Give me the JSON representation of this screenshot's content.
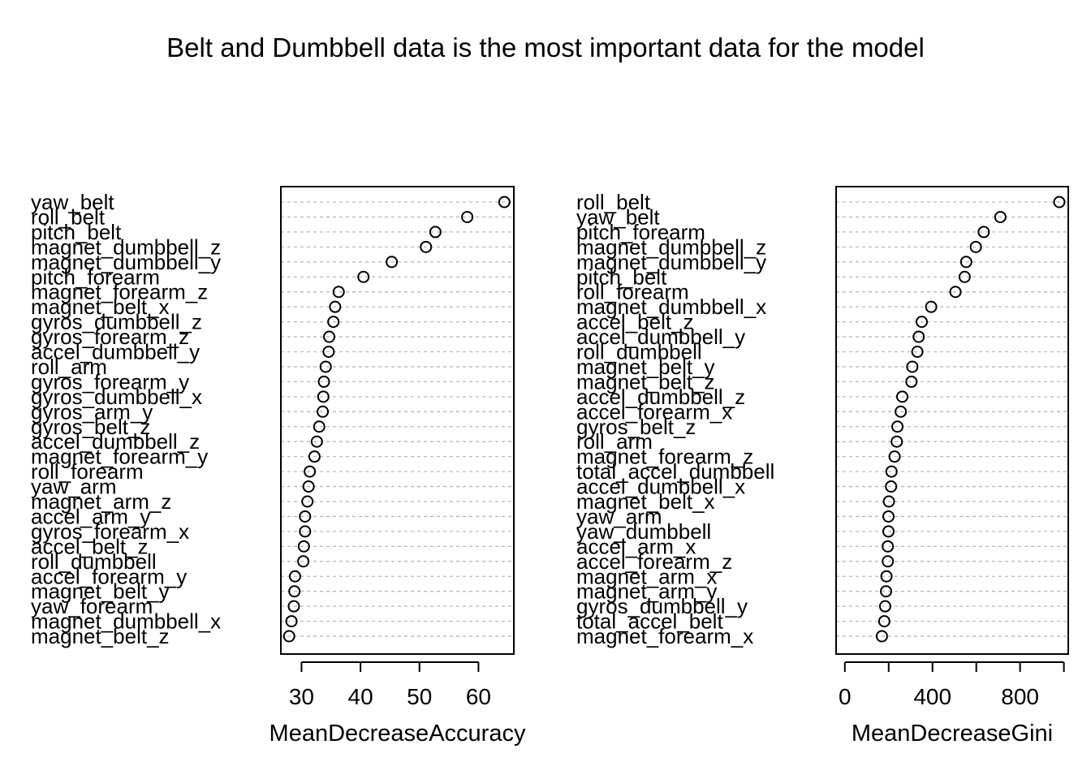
{
  "title": "Belt and Dumbbell data is the most important data for the model",
  "chart_data": [
    {
      "type": "scatter",
      "subtype": "dotchart",
      "xlabel": "MeanDecreaseAccuracy",
      "ylabel": "",
      "xlim": [
        26.5,
        66
      ],
      "xticks": [
        30,
        40,
        50,
        60
      ],
      "tick_labels": [
        "30",
        "40",
        "50",
        "60"
      ],
      "grid": true,
      "series": [
        {
          "categories": [
            "yaw_belt",
            "roll_belt",
            "pitch_belt",
            "magnet_dumbbell_z",
            "magnet_dumbbell_y",
            "pitch_forearm",
            "magnet_forearm_z",
            "magnet_belt_x",
            "gyros_dumbbell_z",
            "gyros_forearm_z",
            "accel_dumbbell_y",
            "roll_arm",
            "gyros_forearm_y",
            "gyros_dumbbell_x",
            "gyros_arm_y",
            "gyros_belt_z",
            "accel_dumbbell_z",
            "magnet_forearm_y",
            "roll_forearm",
            "yaw_arm",
            "magnet_arm_z",
            "accel_arm_y",
            "gyros_forearm_x",
            "accel_belt_z",
            "roll_dumbbell",
            "accel_forearm_y",
            "magnet_belt_y",
            "yaw_forearm",
            "magnet_dumbbell_x",
            "magnet_belt_z"
          ],
          "values": [
            64.4,
            58.1,
            52.7,
            51.1,
            45.3,
            40.5,
            36.3,
            35.7,
            35.4,
            34.7,
            34.6,
            34.1,
            33.8,
            33.7,
            33.6,
            33.0,
            32.6,
            32.2,
            31.4,
            31.2,
            31.0,
            30.6,
            30.6,
            30.4,
            30.3,
            28.9,
            28.8,
            28.7,
            28.3,
            27.9
          ]
        }
      ]
    },
    {
      "type": "scatter",
      "subtype": "dotchart",
      "xlabel": "MeanDecreaseGini",
      "ylabel": "",
      "xlim": [
        -40,
        1020
      ],
      "xticks": [
        0,
        200,
        400,
        600,
        800,
        1000
      ],
      "tick_labels": [
        "0",
        "",
        "400",
        "",
        "800",
        ""
      ],
      "grid": true,
      "series": [
        {
          "categories": [
            "roll_belt",
            "yaw_belt",
            "pitch_forearm",
            "magnet_dumbbell_z",
            "magnet_dumbbell_y",
            "pitch_belt",
            "roll_forearm",
            "magnet_dumbbell_x",
            "accel_belt_z",
            "accel_dumbbell_y",
            "roll_dumbbell",
            "magnet_belt_y",
            "magnet_belt_z",
            "accel_dumbbell_z",
            "accel_forearm_x",
            "gyros_belt_z",
            "roll_arm",
            "magnet_forearm_z",
            "total_accel_dumbbell",
            "accel_dumbbell_x",
            "magnet_belt_x",
            "yaw_arm",
            "yaw_dumbbell",
            "accel_arm_x",
            "accel_forearm_z",
            "magnet_arm_x",
            "magnet_arm_y",
            "gyros_dumbbell_y",
            "total_accel_belt",
            "magnet_forearm_x"
          ],
          "values": [
            979,
            710,
            634,
            598,
            554,
            547,
            505,
            394,
            351,
            337,
            331,
            308,
            304,
            262,
            255,
            240,
            237,
            227,
            213,
            211,
            201,
            199,
            199,
            196,
            196,
            190,
            188,
            184,
            180,
            169
          ]
        }
      ]
    }
  ]
}
